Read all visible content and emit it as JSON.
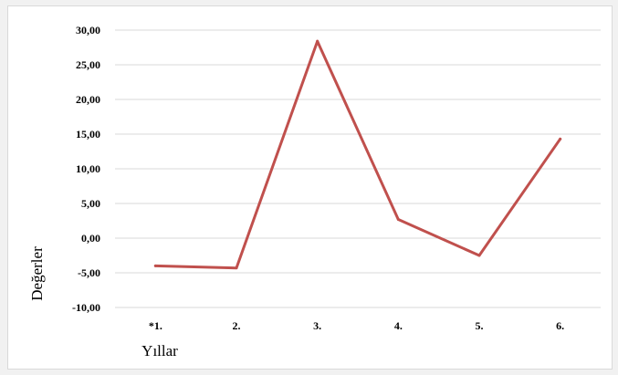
{
  "chart_data": {
    "type": "line",
    "title": "",
    "xlabel": "Yıllar",
    "ylabel": "Değerler",
    "categories": [
      "*1.",
      "2.",
      "3.",
      "4.",
      "5.",
      "6."
    ],
    "series": [
      {
        "values": [
          -4.0,
          -4.3,
          28.4,
          2.7,
          -2.5,
          14.3
        ],
        "color": "#c0504d"
      }
    ],
    "ylim": [
      -10,
      30
    ],
    "yticks": [
      "-10,00",
      "-5,00",
      "0,00",
      "5,00",
      "10,00",
      "15,00",
      "20,00",
      "25,00",
      "30,00"
    ],
    "ytick_values": [
      -10,
      -5,
      0,
      5,
      10,
      15,
      20,
      25,
      30
    ],
    "grid": true,
    "legend": "none"
  }
}
